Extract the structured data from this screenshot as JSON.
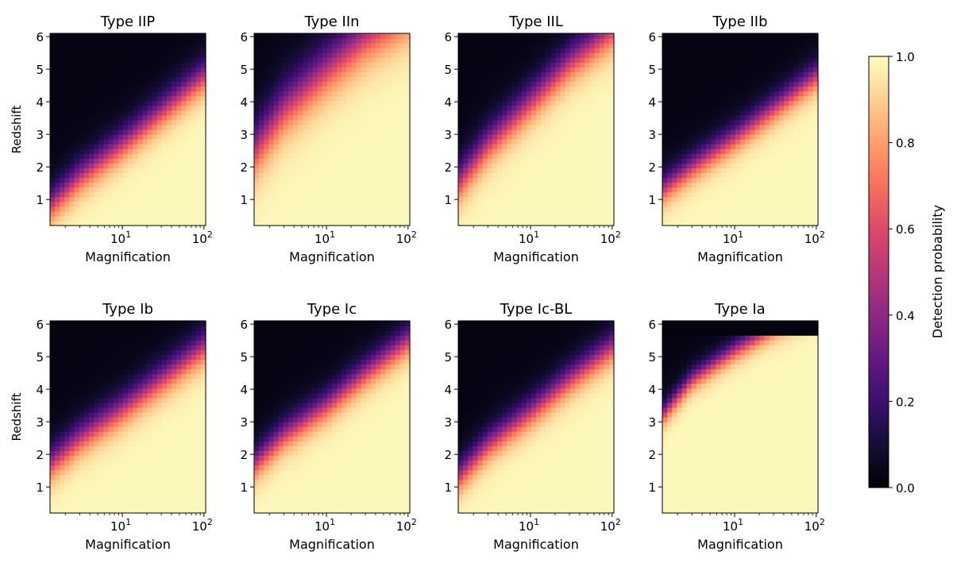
{
  "chart_data": [
    {
      "type": "heatmap",
      "title": "Type IIP",
      "xlabel": "Magnification",
      "ylabel": "Redshift",
      "xscale": "log",
      "xlim": [
        1.3,
        105
      ],
      "ylim": [
        0.2,
        6.1
      ],
      "xticks": [
        {
          "value": 10,
          "base": "10",
          "exp": "1"
        },
        {
          "value": 100,
          "base": "10",
          "exp": "2"
        }
      ],
      "yticks": [
        1,
        2,
        3,
        4,
        5,
        6
      ],
      "boundary": {
        "magnification": [
          1.3,
          3,
          10,
          30,
          100
        ],
        "redshift": [
          0.8,
          1.7,
          2.7,
          3.7,
          4.8
        ]
      },
      "transition_width": 1.4,
      "colorbar": "magma"
    },
    {
      "type": "heatmap",
      "title": "Type IIn",
      "xlabel": "Magnification",
      "ylabel": "",
      "xscale": "log",
      "xlim": [
        1.3,
        105
      ],
      "ylim": [
        0.2,
        6.1
      ],
      "xticks": [
        {
          "value": 10,
          "base": "10",
          "exp": "1"
        },
        {
          "value": 100,
          "base": "10",
          "exp": "2"
        }
      ],
      "yticks": [
        1,
        2,
        3,
        4,
        5,
        6
      ],
      "boundary": {
        "magnification": [
          1.3,
          3,
          10,
          30,
          100
        ],
        "redshift": [
          2.5,
          3.8,
          5.0,
          6.0,
          6.8
        ]
      },
      "transition_width": 2.2,
      "colorbar": "magma"
    },
    {
      "type": "heatmap",
      "title": "Type IIL",
      "xlabel": "Magnification",
      "ylabel": "",
      "xscale": "log",
      "xlim": [
        1.3,
        105
      ],
      "ylim": [
        0.2,
        6.1
      ],
      "xticks": [
        {
          "value": 10,
          "base": "10",
          "exp": "1"
        },
        {
          "value": 100,
          "base": "10",
          "exp": "2"
        }
      ],
      "yticks": [
        1,
        2,
        3,
        4,
        5,
        6
      ],
      "boundary": {
        "magnification": [
          1.3,
          3,
          10,
          30,
          100
        ],
        "redshift": [
          1.5,
          2.7,
          4.0,
          5.2,
          6.2
        ]
      },
      "transition_width": 1.6,
      "colorbar": "magma"
    },
    {
      "type": "heatmap",
      "title": "Type IIb",
      "xlabel": "Magnification",
      "ylabel": "",
      "xscale": "log",
      "xlim": [
        1.3,
        105
      ],
      "ylim": [
        0.2,
        6.1
      ],
      "xticks": [
        {
          "value": 10,
          "base": "10",
          "exp": "1"
        },
        {
          "value": 100,
          "base": "10",
          "exp": "2"
        }
      ],
      "yticks": [
        1,
        2,
        3,
        4,
        5,
        6
      ],
      "boundary": {
        "magnification": [
          1.3,
          3,
          10,
          30,
          100
        ],
        "redshift": [
          1.3,
          2.0,
          2.9,
          3.8,
          4.8
        ]
      },
      "transition_width": 1.2,
      "colorbar": "magma"
    },
    {
      "type": "heatmap",
      "title": "Type Ib",
      "xlabel": "Magnification",
      "ylabel": "Redshift",
      "xscale": "log",
      "xlim": [
        1.3,
        105
      ],
      "ylim": [
        0.2,
        6.1
      ],
      "xticks": [
        {
          "value": 10,
          "base": "10",
          "exp": "1"
        },
        {
          "value": 100,
          "base": "10",
          "exp": "2"
        }
      ],
      "yticks": [
        1,
        2,
        3,
        4,
        5,
        6
      ],
      "boundary": {
        "magnification": [
          1.3,
          3,
          10,
          30,
          100
        ],
        "redshift": [
          1.7,
          2.5,
          3.4,
          4.3,
          5.3
        ]
      },
      "transition_width": 1.4,
      "colorbar": "magma"
    },
    {
      "type": "heatmap",
      "title": "Type Ic",
      "xlabel": "Magnification",
      "ylabel": "",
      "xscale": "log",
      "xlim": [
        1.3,
        105
      ],
      "ylim": [
        0.2,
        6.1
      ],
      "xticks": [
        {
          "value": 10,
          "base": "10",
          "exp": "1"
        },
        {
          "value": 100,
          "base": "10",
          "exp": "2"
        }
      ],
      "yticks": [
        1,
        2,
        3,
        4,
        5,
        6
      ],
      "boundary": {
        "magnification": [
          1.3,
          3,
          10,
          30,
          100
        ],
        "redshift": [
          1.7,
          2.6,
          3.5,
          4.5,
          5.5
        ]
      },
      "transition_width": 1.3,
      "colorbar": "magma"
    },
    {
      "type": "heatmap",
      "title": "Type Ic-BL",
      "xlabel": "Magnification",
      "ylabel": "",
      "xscale": "log",
      "xlim": [
        1.3,
        105
      ],
      "ylim": [
        0.2,
        6.1
      ],
      "xticks": [
        {
          "value": 10,
          "base": "10",
          "exp": "1"
        },
        {
          "value": 100,
          "base": "10",
          "exp": "2"
        }
      ],
      "yticks": [
        1,
        2,
        3,
        4,
        5,
        6
      ],
      "boundary": {
        "magnification": [
          1.3,
          3,
          10,
          30,
          100
        ],
        "redshift": [
          1.3,
          2.3,
          3.3,
          4.3,
          5.3
        ]
      },
      "transition_width": 1.3,
      "colorbar": "magma"
    },
    {
      "type": "heatmap",
      "title": "Type Ia",
      "xlabel": "Magnification",
      "ylabel": "",
      "xscale": "log",
      "xlim": [
        1.3,
        105
      ],
      "ylim": [
        0.2,
        6.1
      ],
      "xticks": [
        {
          "value": 10,
          "base": "10",
          "exp": "1"
        },
        {
          "value": 100,
          "base": "10",
          "exp": "2"
        }
      ],
      "yticks": [
        1,
        2,
        3,
        4,
        5,
        6
      ],
      "boundary": {
        "magnification": [
          1.3,
          3,
          10,
          30,
          100
        ],
        "redshift": [
          3.2,
          4.3,
          5.2,
          5.9,
          6.5
        ]
      },
      "transition_width": 0.9,
      "redshift_cutoff": 5.6,
      "colorbar": "magma"
    }
  ],
  "colorbar": {
    "label": "Detection probability",
    "colormap": "magma",
    "ticks": [
      "0.0",
      "0.2",
      "0.4",
      "0.6",
      "0.8",
      "1.0"
    ],
    "range": [
      0.0,
      1.0
    ]
  }
}
